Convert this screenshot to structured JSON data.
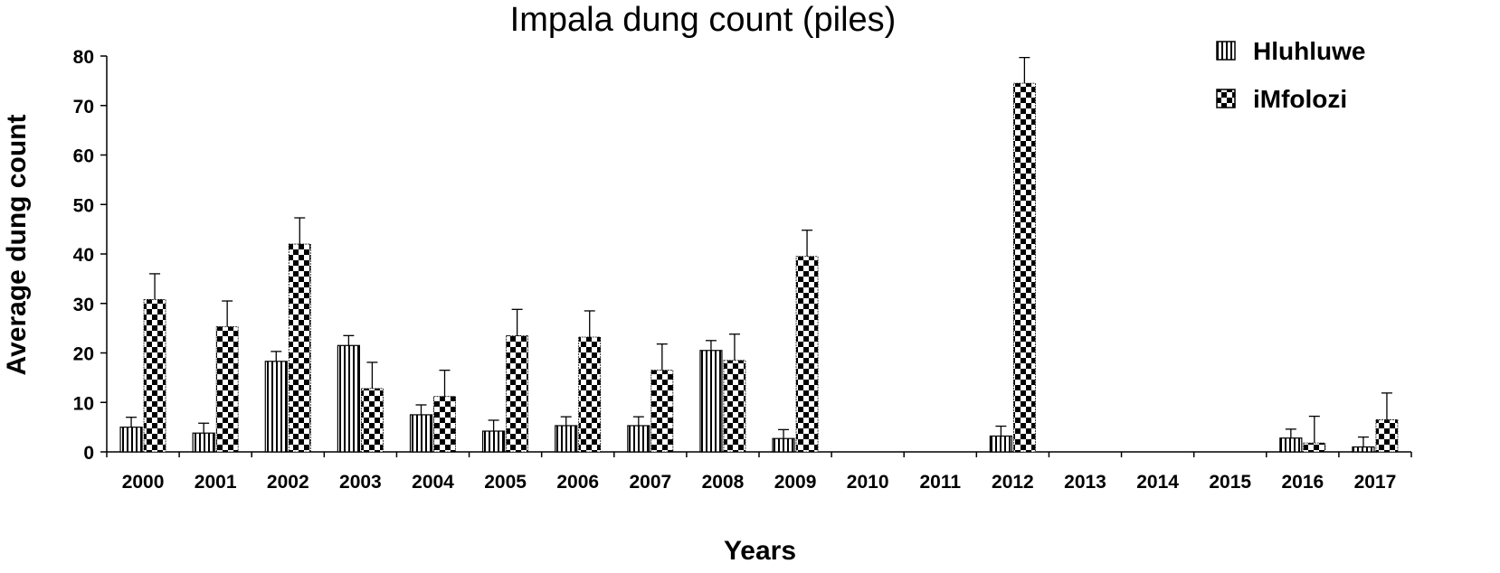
{
  "chart_data": {
    "type": "bar",
    "title": "Impala dung count (piles)",
    "xlabel": "Years",
    "ylabel": "Average dung count",
    "categories": [
      "2000",
      "2001",
      "2002",
      "2003",
      "2004",
      "2005",
      "2006",
      "2007",
      "2008",
      "2009",
      "2010",
      "2011",
      "2012",
      "2013",
      "2014",
      "2015",
      "2016",
      "2017"
    ],
    "ylim": [
      0,
      80
    ],
    "yticks": [
      "0",
      "10",
      "20",
      "30",
      "40",
      "50",
      "60",
      "70",
      "80"
    ],
    "grid": false,
    "legend_position": "top-right",
    "series": [
      {
        "name": "Hluhluwe",
        "pattern": "vertical-stripes",
        "values": [
          5,
          3.8,
          18.3,
          21.5,
          7.5,
          4.2,
          5.3,
          5.3,
          20.5,
          2.7,
          0,
          0,
          3.2,
          0,
          0,
          0,
          2.8,
          1
        ],
        "errors": [
          2,
          2,
          2,
          2,
          2,
          2.2,
          1.8,
          1.8,
          2,
          1.8,
          0,
          0,
          2,
          0,
          0,
          0,
          1.8,
          2
        ]
      },
      {
        "name": "iMfolozi",
        "pattern": "checkerboard",
        "values": [
          30.8,
          25.3,
          42,
          12.8,
          11.2,
          23.5,
          23.2,
          16.5,
          18.5,
          39.5,
          0,
          0,
          74.5,
          0,
          0,
          0,
          1.8,
          6.5
        ],
        "errors": [
          5.2,
          5.2,
          5.3,
          5.3,
          5.3,
          5.3,
          5.3,
          5.3,
          5.3,
          5.3,
          0,
          0,
          5.2,
          0,
          0,
          0,
          5.4,
          5.4
        ]
      }
    ]
  }
}
